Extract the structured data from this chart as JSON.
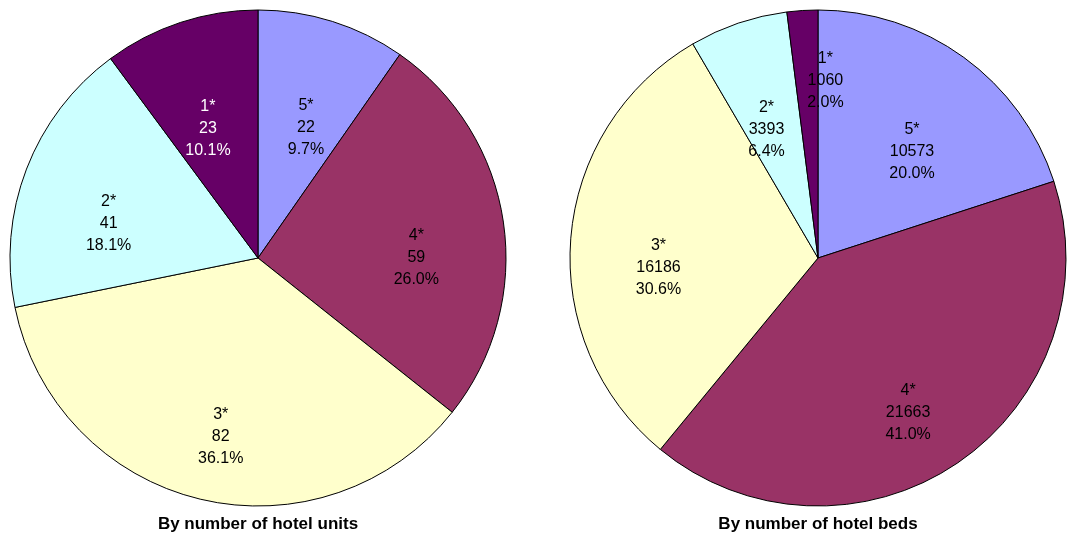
{
  "chart_data": [
    {
      "type": "pie",
      "title": "By number of hotel units",
      "categories": [
        "5*",
        "4*",
        "3*",
        "2*",
        "1*"
      ],
      "values": [
        22,
        59,
        82,
        41,
        23
      ],
      "colors": [
        "#9999ff",
        "#993366",
        "#ffffcc",
        "#ccffff",
        "#660066"
      ],
      "value_labels": [
        "22\n9.7%",
        "59\n26.0%",
        "82\n36.1%",
        "41\n18.1%",
        "23\n10.1%"
      ],
      "legend": false
    },
    {
      "type": "pie",
      "title": "By number of hotel beds",
      "categories": [
        "5*",
        "4*",
        "3*",
        "2*",
        "1*"
      ],
      "values": [
        10573,
        21663,
        16186,
        3393,
        1060
      ],
      "colors": [
        "#9999ff",
        "#993366",
        "#ffffcc",
        "#ccffff",
        "#660066"
      ],
      "value_labels": [
        "10573\n20.0%",
        "21663\n41.0%",
        "16186\n30.6%",
        "3393\n6.4%",
        "1060\n2.0%"
      ],
      "legend": false
    }
  ]
}
